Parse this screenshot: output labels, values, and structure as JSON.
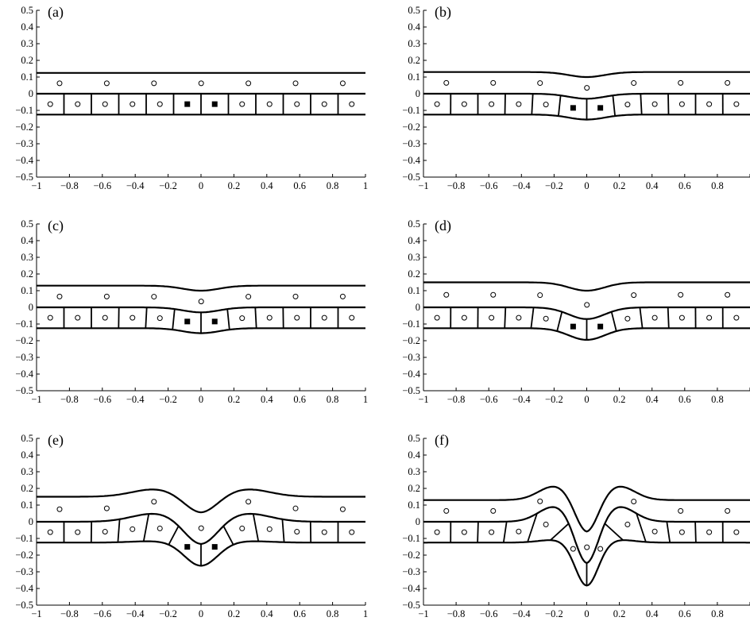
{
  "figure": {
    "x_ticks": [
      "−1",
      "−0.8",
      "−0.6",
      "−0.4",
      "−0.2",
      "0",
      "0.2",
      "0.4",
      "0.6",
      "0.8",
      "1"
    ],
    "y_ticks": [
      "0.5",
      "0.4",
      "0.3",
      "0.2",
      "0.1",
      "0",
      "−0.1",
      "−0.2",
      "−0.3",
      "−0.4",
      "−0.5"
    ],
    "xlim": [
      -1,
      1
    ],
    "ylim": [
      -0.5,
      0.5
    ],
    "panels": [
      {
        "label": "(a)",
        "depth": 0.0,
        "width": 0.5,
        "top_bump": 0.0,
        "apex_open": 0.0,
        "special_cells": 2,
        "upper_level": 0.125
      },
      {
        "label": "(b)",
        "depth": 0.03,
        "width": 0.22,
        "top_bump": -0.03,
        "apex_open": 0.0,
        "special_cells": 2,
        "upper_level": 0.13
      },
      {
        "label": "(c)",
        "depth": 0.03,
        "width": 0.22,
        "top_bump": -0.03,
        "apex_open": 0.0,
        "special_cells": 4,
        "upper_level": 0.13
      },
      {
        "label": "(d)",
        "depth": 0.07,
        "width": 0.22,
        "top_bump": -0.05,
        "apex_open": 0.0,
        "special_cells": 4,
        "upper_level": 0.15
      },
      {
        "label": "(e)",
        "depth": 0.14,
        "width": 0.2,
        "top_bump": -0.1,
        "apex_open": 0.0,
        "special_cells": 4,
        "upper_level": 0.15
      },
      {
        "label": "(f)",
        "depth": 0.26,
        "width": 0.14,
        "top_bump": -0.2,
        "apex_open": 0.0,
        "special_cells": 0,
        "upper_level": 0.13
      }
    ]
  }
}
